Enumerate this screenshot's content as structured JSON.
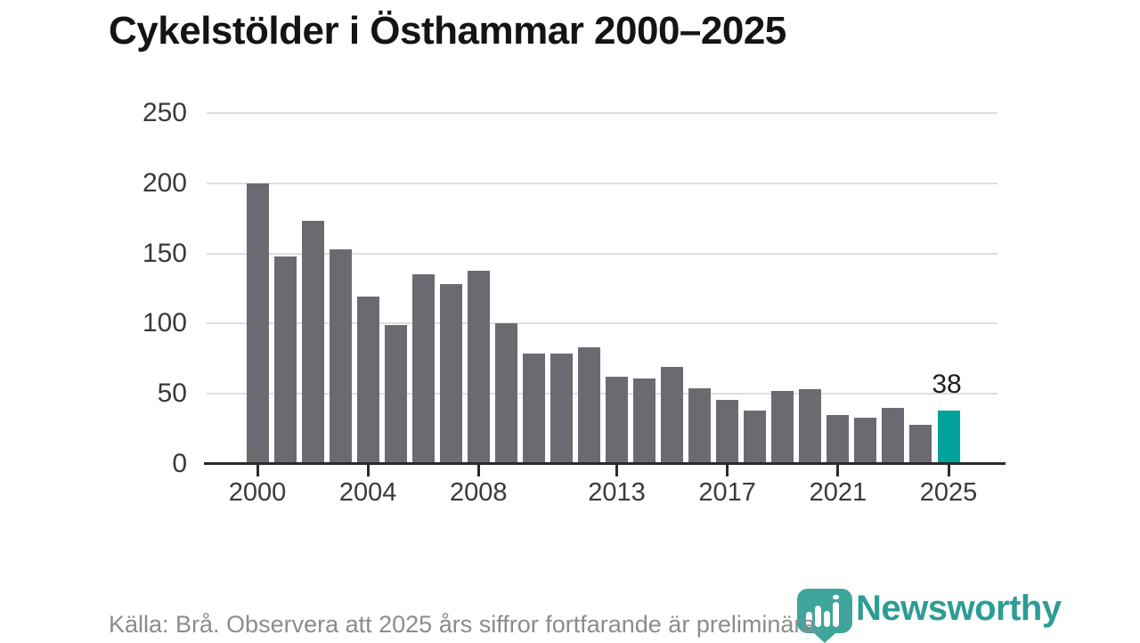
{
  "title": "Cykelstölder i Östhammar 2000–2025",
  "footer": {
    "source_note": "Källa: Brå. Observera att 2025 års siffror fortfarande är preliminära."
  },
  "branding": {
    "name": "Newsworthy",
    "icon": "newsworthy-bubble-barchart-icon",
    "text_color": "#2d9c95",
    "icon_color": "#3fa49c"
  },
  "chart_data": {
    "type": "bar",
    "title": "Cykelstölder i Östhammar 2000–2025",
    "xlabel": "",
    "ylabel": "",
    "x": [
      2000,
      2001,
      2002,
      2003,
      2004,
      2005,
      2006,
      2007,
      2008,
      2009,
      2010,
      2011,
      2012,
      2013,
      2014,
      2015,
      2016,
      2017,
      2018,
      2019,
      2020,
      2021,
      2022,
      2023,
      2024,
      2025
    ],
    "values": [
      200,
      148,
      173,
      153,
      119,
      99,
      135,
      128,
      138,
      100,
      79,
      79,
      83,
      62,
      61,
      69,
      54,
      46,
      38,
      52,
      53,
      35,
      33,
      40,
      28,
      38
    ],
    "highlight": {
      "year": 2025,
      "value": 38,
      "label": "38",
      "color": "#00a29b"
    },
    "bar_color": "#6c6a70",
    "y_ticks": [
      0,
      50,
      100,
      150,
      200,
      250
    ],
    "x_ticks": [
      2000,
      2004,
      2008,
      2013,
      2017,
      2021,
      2025
    ],
    "ylim": [
      0,
      250
    ],
    "grid": "horizontal",
    "legend": "none",
    "grid_color": "#dedede",
    "axis_color": "#2b2b2b",
    "tick_label_color": "#3a3a3a"
  }
}
